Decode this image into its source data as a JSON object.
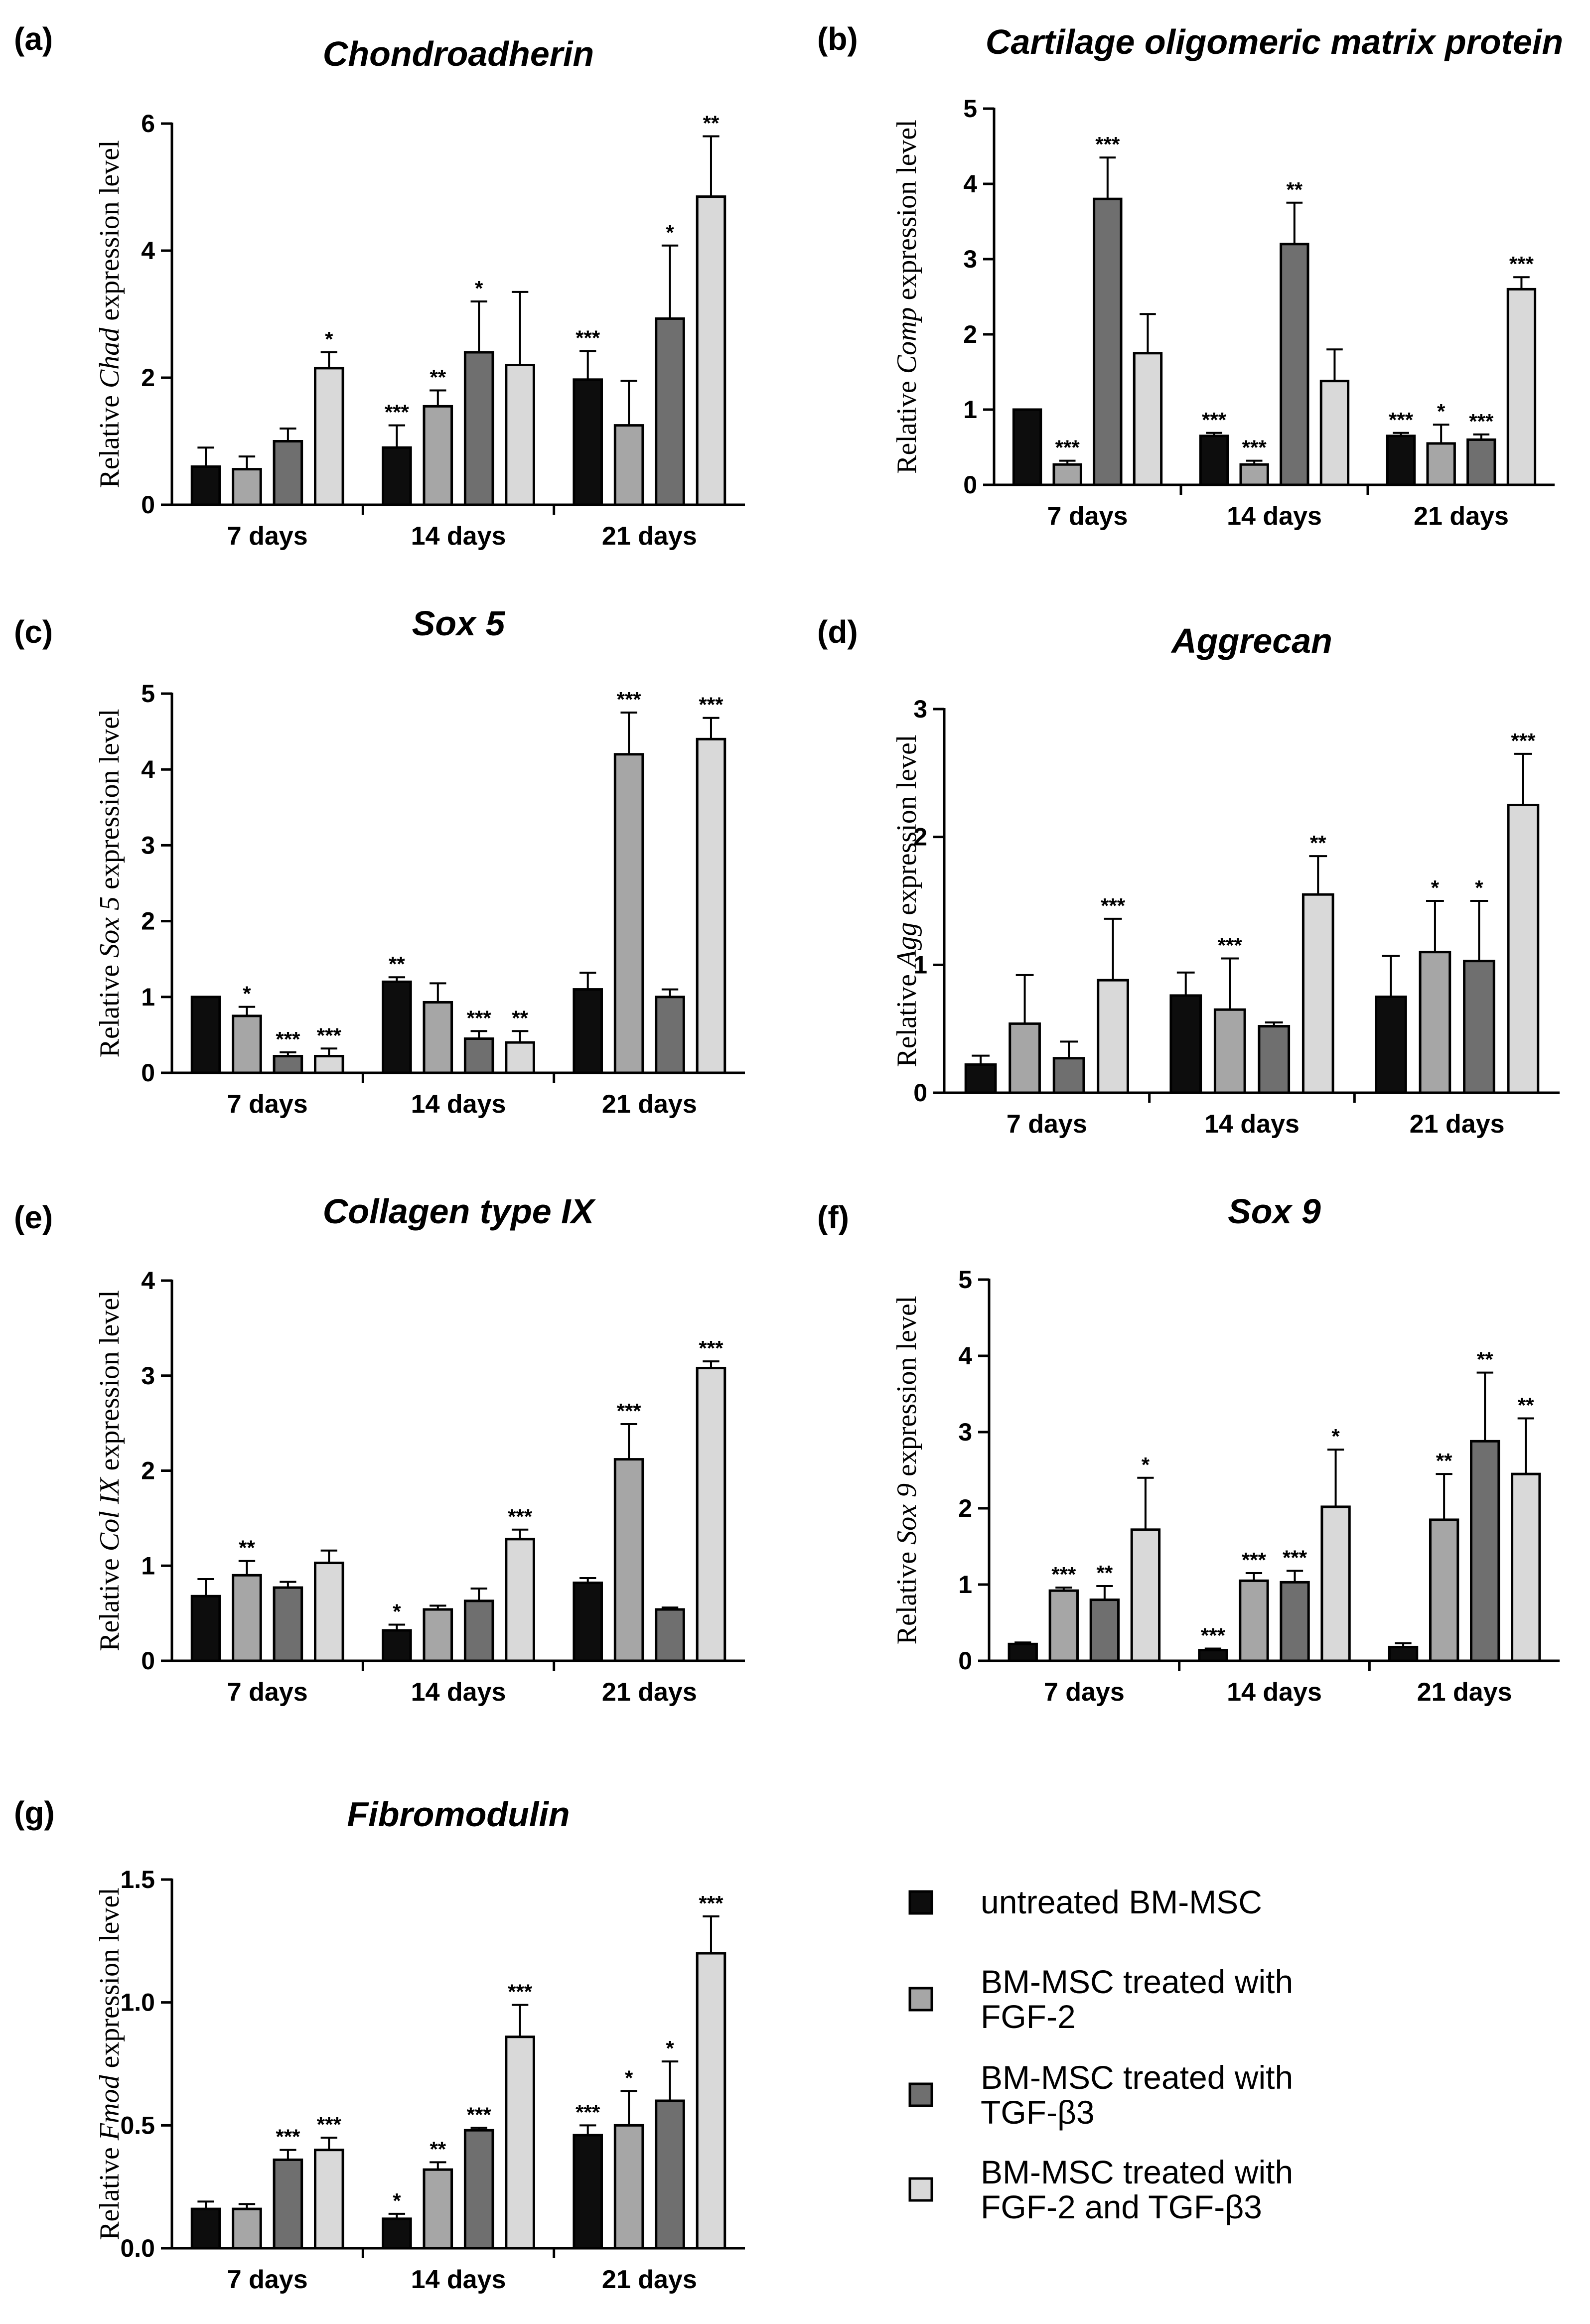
{
  "legend": {
    "items": [
      {
        "lines": [
          "untreated BM-MSC"
        ],
        "color": "#0d0d0d"
      },
      {
        "lines": [
          "BM-MSC treated with",
          "FGF-2"
        ],
        "color": "#a6a6a6"
      },
      {
        "lines": [
          "BM-MSC treated with",
          "TGF-β3"
        ],
        "color": "#6f6f6f"
      },
      {
        "lines": [
          "BM-MSC treated with",
          "FGF-2 and TGF-β3"
        ],
        "color": "#d9d9d9"
      }
    ]
  },
  "chart_data": [
    {
      "type": "bar",
      "letter": "(a)",
      "title": "Chondroadherin",
      "ylabel_pre": "Relative ",
      "ylabel_gene": "Chad",
      "ylabel_post": " expression level",
      "categories": [
        "7 days",
        "14 days",
        "21 days"
      ],
      "ylim": [
        0,
        6
      ],
      "yticks": [
        "0",
        "2",
        "4",
        "6"
      ],
      "series": [
        {
          "name": "untreated BM-MSC",
          "values": [
            0.6,
            0.9,
            1.97
          ],
          "errors": [
            0.3,
            0.35,
            0.45
          ],
          "stars": [
            "",
            "***",
            "***"
          ]
        },
        {
          "name": "BM-MSC treated with FGF-2",
          "values": [
            0.56,
            1.55,
            1.25
          ],
          "errors": [
            0.2,
            0.25,
            0.7
          ],
          "stars": [
            "",
            "**",
            ""
          ]
        },
        {
          "name": "BM-MSC treated with TGF-β3",
          "values": [
            1.0,
            2.4,
            2.93
          ],
          "errors": [
            0.2,
            0.8,
            1.15
          ],
          "stars": [
            "",
            "*",
            "*"
          ]
        },
        {
          "name": "BM-MSC treated with FGF-2 and TGF-β3",
          "values": [
            2.15,
            2.2,
            4.85
          ],
          "errors": [
            0.25,
            1.15,
            0.95
          ],
          "stars": [
            "*",
            "",
            "**"
          ]
        }
      ]
    },
    {
      "type": "bar",
      "letter": "(b)",
      "title": "Cartilage oligomeric matrix protein",
      "ylabel_pre": "Relative ",
      "ylabel_gene": "Comp",
      "ylabel_post": " expression level",
      "categories": [
        "7 days",
        "14 days",
        "21 days"
      ],
      "ylim": [
        0,
        5
      ],
      "yticks": [
        "0",
        "1",
        "2",
        "3",
        "4",
        "5"
      ],
      "series": [
        {
          "name": "untreated BM-MSC",
          "values": [
            1.0,
            0.65,
            0.65
          ],
          "errors": [
            0,
            0.04,
            0.04
          ],
          "stars": [
            "",
            "***",
            "***"
          ]
        },
        {
          "name": "BM-MSC treated with FGF-2",
          "values": [
            0.27,
            0.27,
            0.55
          ],
          "errors": [
            0.05,
            0.05,
            0.25
          ],
          "stars": [
            "***",
            "***",
            "*"
          ]
        },
        {
          "name": "BM-MSC treated with TGF-β3",
          "values": [
            3.8,
            3.2,
            0.6
          ],
          "errors": [
            0.55,
            0.55,
            0.07
          ],
          "stars": [
            "***",
            "**",
            "***"
          ]
        },
        {
          "name": "BM-MSC treated with FGF-2 and TGF-β3",
          "values": [
            1.75,
            1.38,
            2.6
          ],
          "errors": [
            0.52,
            0.42,
            0.16
          ],
          "stars": [
            "",
            "",
            "***"
          ]
        }
      ]
    },
    {
      "type": "bar",
      "letter": "(c)",
      "title": "Sox 5",
      "ylabel_pre": "Relative ",
      "ylabel_gene": "Sox 5",
      "ylabel_post": " expression level",
      "categories": [
        "7 days",
        "14 days",
        "21 days"
      ],
      "ylim": [
        0,
        5
      ],
      "yticks": [
        "0",
        "1",
        "2",
        "3",
        "4",
        "5"
      ],
      "series": [
        {
          "name": "untreated BM-MSC",
          "values": [
            1.0,
            1.2,
            1.1
          ],
          "errors": [
            0,
            0.06,
            0.22
          ],
          "stars": [
            "",
            "**",
            ""
          ]
        },
        {
          "name": "BM-MSC treated with FGF-2",
          "values": [
            0.75,
            0.93,
            4.2
          ],
          "errors": [
            0.12,
            0.25,
            0.55
          ],
          "stars": [
            "*",
            "",
            "***"
          ]
        },
        {
          "name": "BM-MSC treated with TGF-β3",
          "values": [
            0.22,
            0.45,
            1.0
          ],
          "errors": [
            0.05,
            0.1,
            0.1
          ],
          "stars": [
            "***",
            "***",
            ""
          ]
        },
        {
          "name": "BM-MSC treated with FGF-2 and TGF-β3",
          "values": [
            0.22,
            0.4,
            4.4
          ],
          "errors": [
            0.1,
            0.15,
            0.28
          ],
          "stars": [
            "***",
            "**",
            "***"
          ]
        }
      ]
    },
    {
      "type": "bar",
      "letter": "(d)",
      "title": "Aggrecan",
      "ylabel_pre": "Relative ",
      "ylabel_gene": "Agg",
      "ylabel_post": " expression level",
      "categories": [
        "7 days",
        "14 days",
        "21 days"
      ],
      "ylim": [
        0,
        3
      ],
      "yticks": [
        "0",
        "1",
        "2",
        "3"
      ],
      "series": [
        {
          "name": "untreated BM-MSC",
          "values": [
            0.22,
            0.76,
            0.75
          ],
          "errors": [
            0.07,
            0.18,
            0.32
          ],
          "stars": [
            "",
            "",
            ""
          ]
        },
        {
          "name": "BM-MSC treated with FGF-2",
          "values": [
            0.54,
            0.65,
            1.1
          ],
          "errors": [
            0.38,
            0.4,
            0.4
          ],
          "stars": [
            "",
            "***",
            "*"
          ]
        },
        {
          "name": "BM-MSC treated with TGF-β3",
          "values": [
            0.27,
            0.52,
            1.03
          ],
          "errors": [
            0.13,
            0.03,
            0.47
          ],
          "stars": [
            "",
            "",
            "*"
          ]
        },
        {
          "name": "BM-MSC treated with FGF-2 and TGF-β3",
          "values": [
            0.88,
            1.55,
            2.25
          ],
          "errors": [
            0.48,
            0.3,
            0.4
          ],
          "stars": [
            "***",
            "**",
            "***"
          ]
        }
      ]
    },
    {
      "type": "bar",
      "letter": "(e)",
      "title": "Collagen type IX",
      "ylabel_pre": "Relative ",
      "ylabel_gene": "Col IX",
      "ylabel_post": " expression level",
      "categories": [
        "7 days",
        "14 days",
        "21 days"
      ],
      "ylim": [
        0,
        4
      ],
      "yticks": [
        "0",
        "1",
        "2",
        "3",
        "4"
      ],
      "series": [
        {
          "name": "untreated BM-MSC",
          "values": [
            0.68,
            0.32,
            0.82
          ],
          "errors": [
            0.18,
            0.06,
            0.05
          ],
          "stars": [
            "",
            "*",
            ""
          ]
        },
        {
          "name": "BM-MSC treated with FGF-2",
          "values": [
            0.9,
            0.54,
            2.12
          ],
          "errors": [
            0.15,
            0.04,
            0.37
          ],
          "stars": [
            "**",
            "",
            "***"
          ]
        },
        {
          "name": "BM-MSC treated with TGF-β3",
          "values": [
            0.77,
            0.63,
            0.54
          ],
          "errors": [
            0.06,
            0.13,
            0.02
          ],
          "stars": [
            "",
            "",
            ""
          ]
        },
        {
          "name": "BM-MSC treated with FGF-2 and TGF-β3",
          "values": [
            1.03,
            1.28,
            3.08
          ],
          "errors": [
            0.13,
            0.1,
            0.07
          ],
          "stars": [
            "",
            "***",
            "***"
          ]
        }
      ]
    },
    {
      "type": "bar",
      "letter": "(f)",
      "title": "Sox 9",
      "ylabel_pre": "Relative ",
      "ylabel_gene": "Sox 9",
      "ylabel_post": " expression level",
      "categories": [
        "7 days",
        "14 days",
        "21 days"
      ],
      "ylim": [
        0,
        5
      ],
      "yticks": [
        "0",
        "1",
        "2",
        "3",
        "4",
        "5"
      ],
      "series": [
        {
          "name": "untreated BM-MSC",
          "values": [
            0.22,
            0.14,
            0.18
          ],
          "errors": [
            0.02,
            0.02,
            0.05
          ],
          "stars": [
            "",
            "***",
            ""
          ]
        },
        {
          "name": "BM-MSC treated with FGF-2",
          "values": [
            0.92,
            1.05,
            1.85
          ],
          "errors": [
            0.04,
            0.1,
            0.6
          ],
          "stars": [
            "***",
            "***",
            "**"
          ]
        },
        {
          "name": "BM-MSC treated with TGF-β3",
          "values": [
            0.8,
            1.03,
            2.88
          ],
          "errors": [
            0.18,
            0.15,
            0.9
          ],
          "stars": [
            "**",
            "***",
            "**"
          ]
        },
        {
          "name": "BM-MSC treated with FGF-2 and TGF-β3",
          "values": [
            1.72,
            2.02,
            2.45
          ],
          "errors": [
            0.68,
            0.75,
            0.73
          ],
          "stars": [
            "*",
            "*",
            "**"
          ]
        }
      ]
    },
    {
      "type": "bar",
      "letter": "(g)",
      "title": "Fibromodulin",
      "ylabel_pre": "Relative ",
      "ylabel_gene": "Fmod",
      "ylabel_post": " expression level",
      "categories": [
        "7 days",
        "14 days",
        "21 days"
      ],
      "ylim": [
        0,
        1.5
      ],
      "yticks": [
        "0.0",
        "0.5",
        "1.0",
        "1.5"
      ],
      "series": [
        {
          "name": "untreated BM-MSC",
          "values": [
            0.16,
            0.12,
            0.46
          ],
          "errors": [
            0.03,
            0.02,
            0.04
          ],
          "stars": [
            "",
            "*",
            "***"
          ]
        },
        {
          "name": "BM-MSC treated with FGF-2",
          "values": [
            0.16,
            0.32,
            0.5
          ],
          "errors": [
            0.02,
            0.03,
            0.14
          ],
          "stars": [
            "",
            "**",
            "*"
          ]
        },
        {
          "name": "BM-MSC treated with TGF-β3",
          "values": [
            0.36,
            0.48,
            0.6
          ],
          "errors": [
            0.04,
            0.01,
            0.16
          ],
          "stars": [
            "***",
            "***",
            "*"
          ]
        },
        {
          "name": "BM-MSC treated with FGF-2 and TGF-β3",
          "values": [
            0.4,
            0.86,
            1.2
          ],
          "errors": [
            0.05,
            0.13,
            0.15
          ],
          "stars": [
            "***",
            "***",
            "***"
          ]
        }
      ]
    }
  ]
}
